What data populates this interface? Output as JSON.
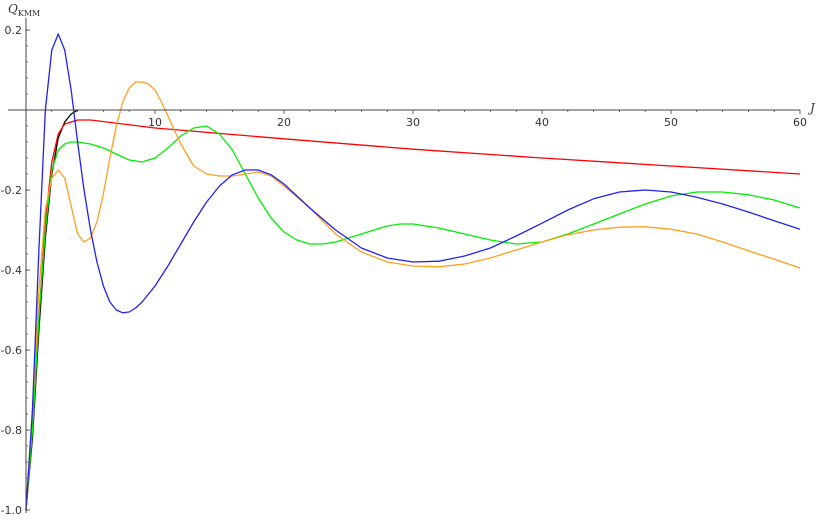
{
  "chart_data": {
    "type": "line",
    "title": "",
    "xlabel": "J",
    "ylabel_main": "Q",
    "ylabel_sub": "KMM",
    "xlim": [
      0,
      60
    ],
    "ylim": [
      -1.0,
      0.22
    ],
    "x_ticks": [
      10,
      20,
      30,
      40,
      50,
      60
    ],
    "x_tick_labels": [
      "10",
      "20",
      "30",
      "40",
      "50",
      "60"
    ],
    "y_ticks": [
      0.2,
      -0.2,
      -0.4,
      -0.6,
      -0.8,
      -1.0
    ],
    "y_tick_labels": [
      "0.2",
      "-0.2",
      "-0.4",
      "-0.6",
      "-0.8",
      "-1.0"
    ],
    "grid": false,
    "series": [
      {
        "color": "#000000",
        "x": [
          0,
          0.5,
          1,
          1.5,
          2,
          2.5,
          3,
          3.5,
          4
        ],
        "y": [
          -1.0,
          -0.82,
          -0.55,
          -0.32,
          -0.16,
          -0.07,
          -0.03,
          -0.01,
          0.0
        ]
      },
      {
        "color": "#ff0000",
        "x": [
          0,
          0.5,
          1,
          1.5,
          2,
          2.5,
          3,
          4,
          5,
          10,
          20,
          30,
          40,
          50,
          60
        ],
        "y": [
          -1.0,
          -0.8,
          -0.52,
          -0.28,
          -0.13,
          -0.06,
          -0.035,
          -0.025,
          -0.025,
          -0.045,
          -0.072,
          -0.098,
          -0.12,
          -0.14,
          -0.16
        ]
      },
      {
        "color": "#00ee00",
        "x": [
          0,
          0.5,
          1,
          1.5,
          2,
          2.5,
          3,
          3.5,
          4,
          5,
          6,
          7,
          8,
          9,
          10,
          11,
          12,
          13,
          14,
          15,
          16,
          17,
          18,
          19,
          20,
          21,
          22,
          23,
          24,
          26,
          28,
          29,
          30,
          32,
          34,
          36,
          38,
          40,
          42,
          44,
          46,
          48,
          50,
          52,
          54,
          56,
          58,
          60
        ],
        "y": [
          -1.0,
          -0.8,
          -0.52,
          -0.3,
          -0.15,
          -0.1,
          -0.085,
          -0.08,
          -0.08,
          -0.085,
          -0.095,
          -0.11,
          -0.125,
          -0.13,
          -0.12,
          -0.095,
          -0.065,
          -0.045,
          -0.04,
          -0.06,
          -0.1,
          -0.16,
          -0.22,
          -0.27,
          -0.305,
          -0.325,
          -0.335,
          -0.335,
          -0.33,
          -0.31,
          -0.29,
          -0.285,
          -0.285,
          -0.295,
          -0.31,
          -0.325,
          -0.335,
          -0.33,
          -0.31,
          -0.285,
          -0.26,
          -0.235,
          -0.215,
          -0.205,
          -0.205,
          -0.212,
          -0.225,
          -0.245
        ]
      },
      {
        "color": "#ff9f20",
        "x": [
          0,
          0.5,
          1,
          1.5,
          2,
          2.5,
          3,
          3.5,
          4,
          4.5,
          5,
          5.5,
          6,
          6.5,
          7,
          7.5,
          8,
          8.5,
          9,
          9.5,
          10,
          10.5,
          11,
          11.5,
          12,
          13,
          14,
          15,
          16,
          17,
          18,
          19,
          20,
          22,
          24,
          26,
          28,
          30,
          32,
          34,
          36,
          38,
          40,
          42,
          44,
          46,
          48,
          50,
          52,
          54,
          56,
          58,
          60
        ],
        "y": [
          -1.0,
          -0.75,
          -0.45,
          -0.25,
          -0.17,
          -0.15,
          -0.17,
          -0.24,
          -0.31,
          -0.33,
          -0.32,
          -0.28,
          -0.21,
          -0.12,
          -0.04,
          0.02,
          0.055,
          0.07,
          0.07,
          0.065,
          0.05,
          0.02,
          -0.015,
          -0.05,
          -0.085,
          -0.14,
          -0.16,
          -0.165,
          -0.165,
          -0.16,
          -0.155,
          -0.165,
          -0.19,
          -0.245,
          -0.31,
          -0.355,
          -0.38,
          -0.39,
          -0.392,
          -0.385,
          -0.37,
          -0.35,
          -0.33,
          -0.312,
          -0.3,
          -0.293,
          -0.292,
          -0.298,
          -0.31,
          -0.33,
          -0.352,
          -0.373,
          -0.395
        ]
      },
      {
        "color": "#2222ee",
        "x": [
          0,
          0.5,
          1,
          1.5,
          2,
          2.5,
          3,
          3.5,
          4,
          4.5,
          5,
          5.5,
          6,
          6.5,
          7,
          7.5,
          8,
          8.5,
          9,
          9.5,
          10,
          10.5,
          11,
          12,
          13,
          14,
          15,
          16,
          17,
          18,
          19,
          20,
          22,
          24,
          26,
          28,
          30,
          32,
          34,
          36,
          38,
          40,
          42,
          44,
          46,
          48,
          50,
          52,
          54,
          56,
          58,
          60
        ],
        "y": [
          -1.0,
          -0.75,
          -0.35,
          0.0,
          0.15,
          0.19,
          0.15,
          0.05,
          -0.08,
          -0.2,
          -0.3,
          -0.38,
          -0.44,
          -0.48,
          -0.5,
          -0.507,
          -0.505,
          -0.495,
          -0.48,
          -0.46,
          -0.44,
          -0.415,
          -0.39,
          -0.335,
          -0.28,
          -0.23,
          -0.19,
          -0.162,
          -0.15,
          -0.15,
          -0.162,
          -0.185,
          -0.245,
          -0.3,
          -0.345,
          -0.37,
          -0.38,
          -0.378,
          -0.365,
          -0.345,
          -0.315,
          -0.283,
          -0.25,
          -0.222,
          -0.205,
          -0.2,
          -0.205,
          -0.218,
          -0.235,
          -0.255,
          -0.277,
          -0.298
        ]
      }
    ]
  }
}
